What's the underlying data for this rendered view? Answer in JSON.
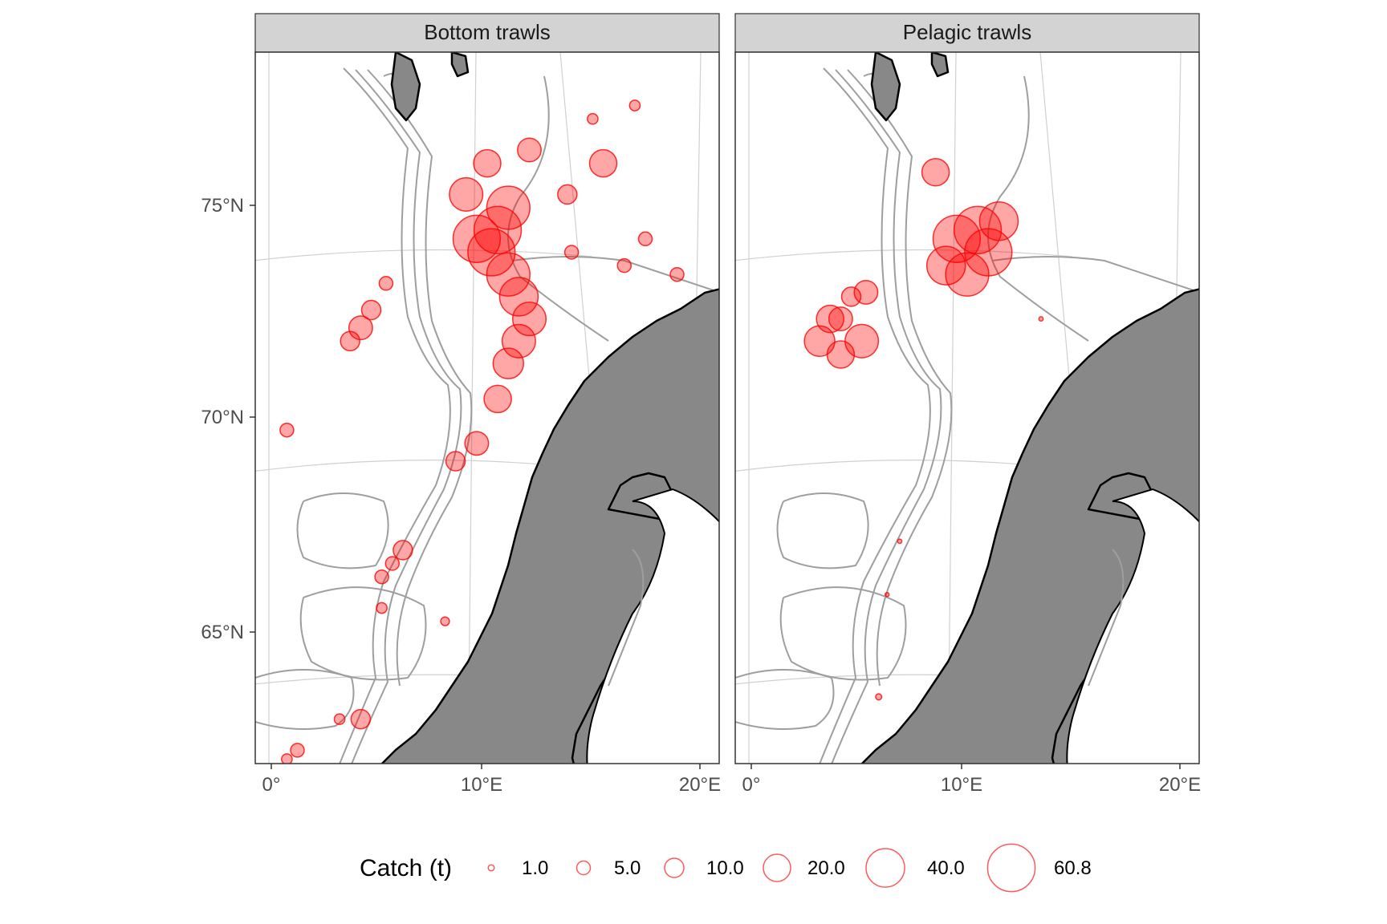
{
  "panels": [
    {
      "title": "Bottom trawls"
    },
    {
      "title": "Pelagic trawls"
    }
  ],
  "axes": {
    "y_ticks": [
      "75°N",
      "70°N",
      "65°N"
    ],
    "x_ticks": [
      "0°",
      "10°E",
      "20°E"
    ]
  },
  "legend": {
    "title": "Catch (t)",
    "items": [
      {
        "label": "1.0",
        "value": 1.0
      },
      {
        "label": "5.0",
        "value": 5.0
      },
      {
        "label": "10.0",
        "value": 10.0
      },
      {
        "label": "20.0",
        "value": 20.0
      },
      {
        "label": "40.0",
        "value": 40.0
      },
      {
        "label": "60.8",
        "value": 60.8
      }
    ]
  },
  "colors": {
    "point": "#ff0000",
    "land": "#888888",
    "strip": "#d3d3d3",
    "depth_contour": "#9e9e9e",
    "graticule": "#d0d0d0"
  },
  "chart_data": {
    "type": "scatter",
    "x_range": [
      -1,
      21
    ],
    "y_range": [
      62,
      78
    ],
    "size_variable": "Catch (t)",
    "series": [
      {
        "name": "Bottom trawls",
        "points": [
          [
            10.5,
            74.0,
            60
          ],
          [
            10.2,
            73.5,
            60
          ],
          [
            11.0,
            73.0,
            50
          ],
          [
            11.5,
            72.5,
            40
          ],
          [
            12.0,
            72.0,
            30
          ],
          [
            11.5,
            71.5,
            30
          ],
          [
            11.0,
            71.0,
            25
          ],
          [
            9.0,
            74.8,
            30
          ],
          [
            10.0,
            75.5,
            20
          ],
          [
            12.0,
            75.8,
            15
          ],
          [
            9.5,
            73.8,
            60
          ],
          [
            11.0,
            74.5,
            50
          ],
          [
            13.8,
            74.8,
            10
          ],
          [
            15.5,
            75.5,
            20
          ],
          [
            14.0,
            73.5,
            5
          ],
          [
            16.5,
            73.2,
            5
          ],
          [
            17.5,
            73.8,
            5
          ],
          [
            19.0,
            73.0,
            5
          ],
          [
            15.0,
            76.5,
            3
          ],
          [
            17.0,
            76.8,
            3
          ],
          [
            5.2,
            72.8,
            5
          ],
          [
            4.5,
            72.2,
            10
          ],
          [
            4.0,
            71.8,
            15
          ],
          [
            3.5,
            71.5,
            10
          ],
          [
            0.5,
            69.5,
            5
          ],
          [
            10.5,
            70.2,
            20
          ],
          [
            9.5,
            69.2,
            15
          ],
          [
            8.5,
            68.8,
            10
          ],
          [
            6.0,
            66.8,
            10
          ],
          [
            5.5,
            66.5,
            5
          ],
          [
            5.0,
            66.2,
            5
          ],
          [
            5.0,
            65.5,
            3
          ],
          [
            8.0,
            65.2,
            2
          ],
          [
            4.0,
            63.0,
            10
          ],
          [
            3.0,
            63.0,
            3
          ],
          [
            1.0,
            62.3,
            5
          ],
          [
            0.5,
            62.1,
            3
          ]
        ]
      },
      {
        "name": "Pelagic trawls",
        "points": [
          [
            8.5,
            75.3,
            20
          ],
          [
            9.5,
            73.8,
            60
          ],
          [
            10.5,
            74.0,
            60
          ],
          [
            11.0,
            73.5,
            60
          ],
          [
            10.0,
            73.0,
            50
          ],
          [
            9.0,
            73.2,
            40
          ],
          [
            11.5,
            74.2,
            40
          ],
          [
            4.5,
            72.5,
            10
          ],
          [
            5.2,
            72.6,
            15
          ],
          [
            3.5,
            72.0,
            20
          ],
          [
            3.0,
            71.5,
            25
          ],
          [
            4.0,
            71.2,
            20
          ],
          [
            5.0,
            71.5,
            30
          ],
          [
            4.0,
            72.0,
            15
          ],
          [
            13.5,
            72.0,
            0.5
          ],
          [
            6.8,
            67.0,
            0.5
          ],
          [
            6.2,
            65.8,
            0.3
          ],
          [
            5.8,
            63.5,
            1
          ]
        ]
      }
    ]
  }
}
